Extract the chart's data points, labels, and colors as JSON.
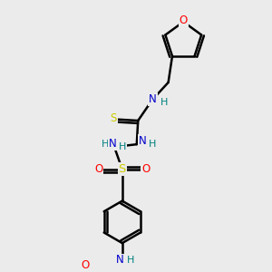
{
  "bg_color": "#ebebeb",
  "line_color": "#000000",
  "bond_width": 1.8,
  "atom_colors": {
    "O": "#ff0000",
    "N": "#0000cc",
    "S_thio": "#cccc00",
    "S_sulf": "#cccc00",
    "H": "#008080",
    "C": "#000000"
  },
  "figsize": [
    3.0,
    3.0
  ],
  "dpi": 100
}
